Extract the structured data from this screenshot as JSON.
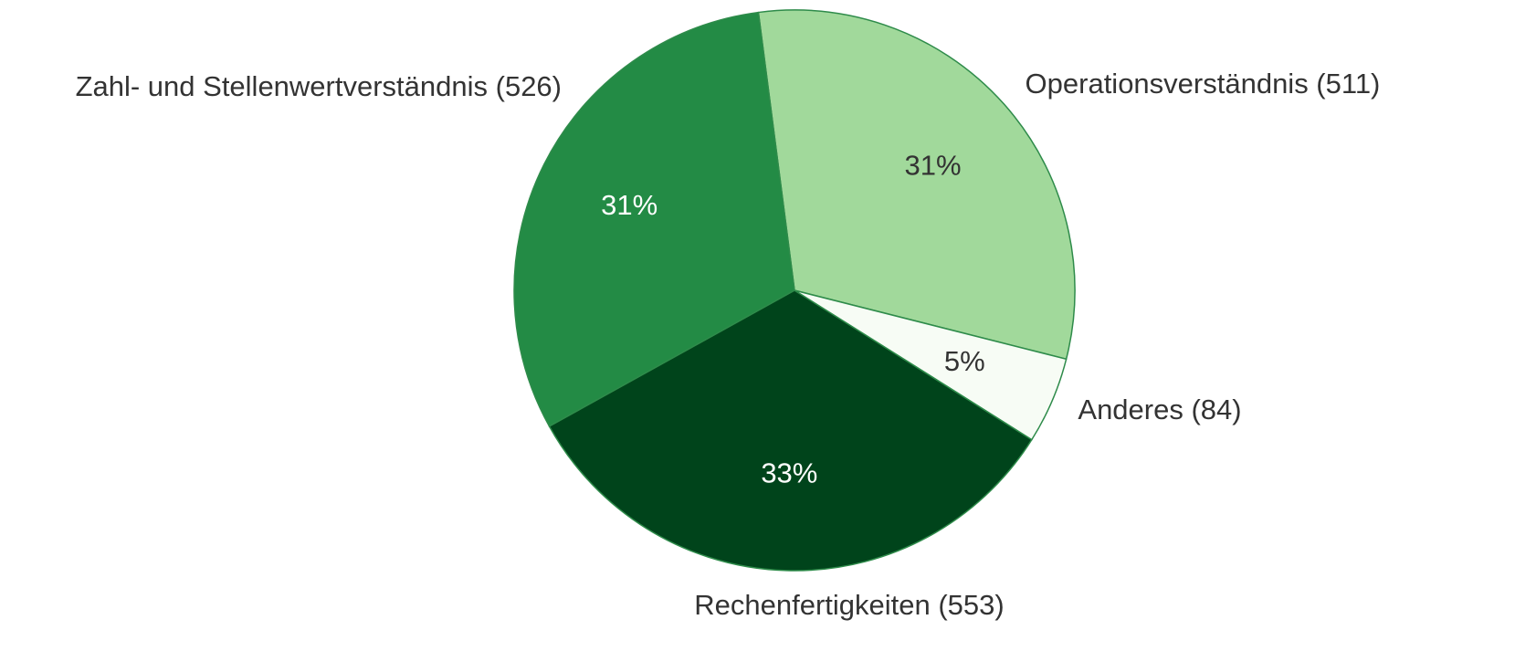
{
  "chart_data": {
    "type": "pie",
    "categories": [
      "Operationsverständnis (511)",
      "Anderes (84)",
      "Rechenfertigkeiten (553)",
      "Zahl- und Stellenwertverständnis (526)"
    ],
    "values": [
      31,
      5,
      33,
      31
    ],
    "value_labels": [
      "31%",
      "5%",
      "33%",
      "31%"
    ],
    "colors": [
      "#a1d99b",
      "#f7fcf5",
      "#00441b",
      "#238b45"
    ]
  }
}
